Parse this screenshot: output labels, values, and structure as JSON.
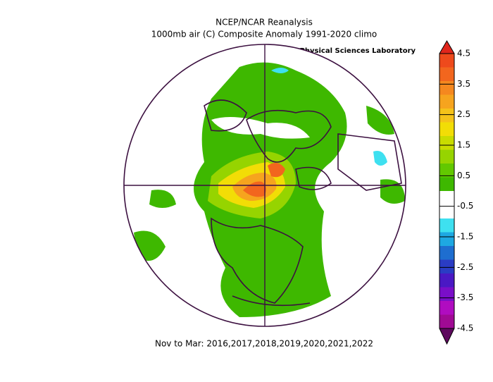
{
  "header": {
    "title": "NCEP/NCAR Reanalysis",
    "subtitle": "1000mb air (C) Composite Anomaly 1991-2020 climo",
    "credit": "NOAA Physical Sciences Laboratory"
  },
  "footer": "Nov to Mar: 2016,2017,2018,2019,2020,2021,2022",
  "colorbar": {
    "ticks": [
      4.5,
      3.5,
      2.5,
      1.5,
      0.5,
      -0.5,
      -1.5,
      -2.5,
      -3.5,
      -4.5
    ],
    "over_color": "#e0261c",
    "colors": [
      "#ee4a1c",
      "#f2661e",
      "#f5881f",
      "#f6a41e",
      "#f5c21a",
      "#f2dd06",
      "#c9dc00",
      "#96d400",
      "#62c800",
      "#3eb800",
      "#ffffff",
      "#ffffff",
      "#3ee0f0",
      "#1ea8e2",
      "#1e6ed0",
      "#2a3cc4",
      "#4a18c4",
      "#7a0ec8",
      "#b00cc0",
      "#a00a94"
    ],
    "under_color": "#5e0a5e"
  }
}
